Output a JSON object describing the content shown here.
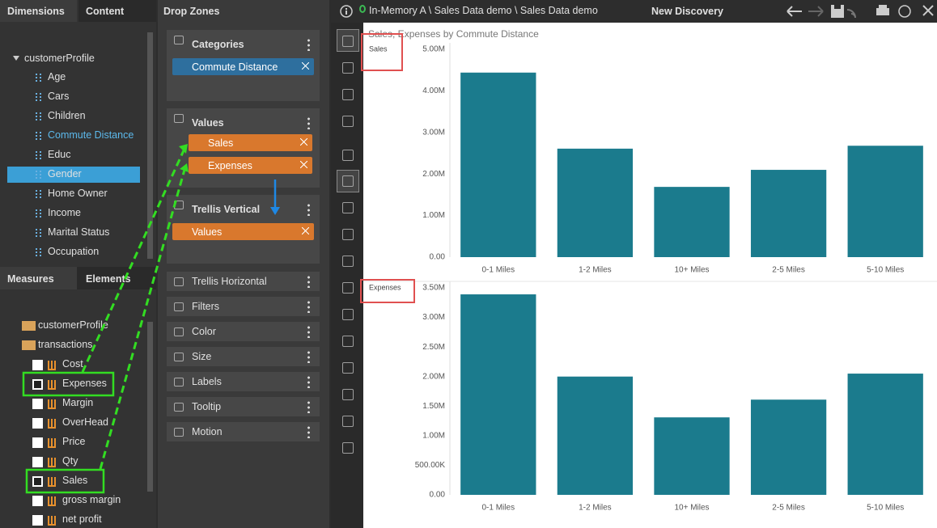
{
  "header": {
    "breadcrumb": "In-Memory A \\ Sales Data demo \\ Sales Data demo",
    "title": "New Discovery"
  },
  "dimensions_panel": {
    "tabs": [
      "Dimensions",
      "Content"
    ],
    "root": "customerProfile",
    "items": [
      {
        "label": "Age",
        "state": "normal"
      },
      {
        "label": "Cars",
        "state": "normal"
      },
      {
        "label": "Children",
        "state": "normal"
      },
      {
        "label": "Commute Distance",
        "state": "used"
      },
      {
        "label": "Educ",
        "state": "normal"
      },
      {
        "label": "Gender",
        "state": "selected"
      },
      {
        "label": "Home Owner",
        "state": "normal"
      },
      {
        "label": "Income",
        "state": "normal"
      },
      {
        "label": "Marital Status",
        "state": "normal"
      },
      {
        "label": "Occupation",
        "state": "normal"
      }
    ]
  },
  "measures_panel": {
    "tabs": [
      "Measures",
      "Elements"
    ],
    "folders": [
      "customerProfile",
      "transactions"
    ],
    "items": [
      {
        "label": "Cost",
        "checked": false
      },
      {
        "label": "Expenses",
        "checked": true
      },
      {
        "label": "Margin",
        "checked": false
      },
      {
        "label": "OverHead",
        "checked": false
      },
      {
        "label": "Price",
        "checked": false
      },
      {
        "label": "Qty",
        "checked": false
      },
      {
        "label": "Sales",
        "checked": true
      },
      {
        "label": "gross margin",
        "checked": false
      },
      {
        "label": "net profit",
        "checked": false
      }
    ]
  },
  "drop_zones": {
    "title": "Drop Zones",
    "zones": [
      {
        "label": "Categories",
        "chips": [
          "Commute Distance"
        ],
        "chip_color": "#2e6f9e"
      },
      {
        "label": "Values",
        "chips": [
          "Sales",
          "Expenses"
        ],
        "chip_color": "#d9782d"
      },
      {
        "label": "Trellis Vertical",
        "chips": [
          "Values"
        ],
        "chip_color": "#d9782d"
      },
      {
        "label": "Trellis Horizontal"
      },
      {
        "label": "Filters"
      },
      {
        "label": "Color"
      },
      {
        "label": "Size"
      },
      {
        "label": "Labels"
      },
      {
        "label": "Tooltip"
      },
      {
        "label": "Motion"
      }
    ]
  },
  "discovery_title": "Sales, Expenses by Commute Distance",
  "chart_data": [
    {
      "type": "bar",
      "y_label": "Sales",
      "color": "#1b7b8d",
      "grid": false,
      "categories": [
        "0-1 Miles",
        "1-2 Miles",
        "10+ Miles",
        "2-5 Miles",
        "5-10 Miles"
      ],
      "values": [
        4440000,
        2610000,
        1690000,
        2100000,
        2680000
      ],
      "ylim": [
        0,
        5000000
      ],
      "yticks": [
        {
          "value": 0,
          "label": "0.00"
        },
        {
          "value": 1000000,
          "label": "1.00M"
        },
        {
          "value": 2000000,
          "label": "2.00M"
        },
        {
          "value": 3000000,
          "label": "3.00M"
        },
        {
          "value": 4000000,
          "label": "4.00M"
        },
        {
          "value": 5000000,
          "label": "5.00M"
        }
      ]
    },
    {
      "type": "bar",
      "y_label": "Expenses",
      "color": "#1b7b8d",
      "grid": false,
      "categories": [
        "0-1 Miles",
        "1-2 Miles",
        "10+ Miles",
        "2-5 Miles",
        "5-10 Miles"
      ],
      "values": [
        3390000,
        2000000,
        1310000,
        1610000,
        2050000
      ],
      "ylim": [
        0,
        3500000
      ],
      "yticks": [
        {
          "value": 0,
          "label": "0.00"
        },
        {
          "value": 500000,
          "label": "500.00K"
        },
        {
          "value": 1000000,
          "label": "1.00M"
        },
        {
          "value": 1500000,
          "label": "1.50M"
        },
        {
          "value": 2000000,
          "label": "2.00M"
        },
        {
          "value": 2500000,
          "label": "2.50M"
        },
        {
          "value": 3000000,
          "label": "3.00M"
        },
        {
          "value": 3500000,
          "label": "3.50M"
        }
      ]
    }
  ]
}
